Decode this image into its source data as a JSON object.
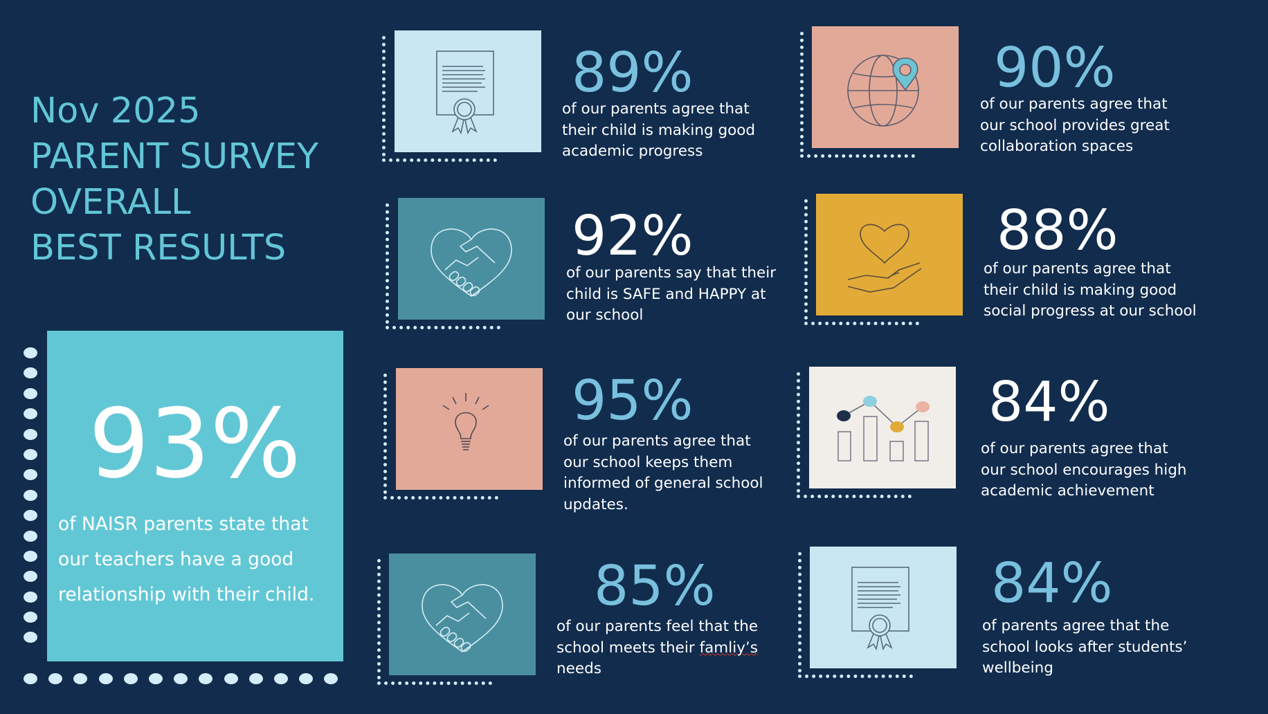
{
  "title": {
    "line1": "Nov 2025",
    "line2": "PARENT SURVEY",
    "line3": "OVERALL",
    "line4": "BEST RESULTS"
  },
  "featured": {
    "percent": "93%",
    "description": "of NAISR parents state that our teachers have a good relationship with their child."
  },
  "colors": {
    "background": "#112c4d",
    "accent": "#63c6d6",
    "tile_light_blue": "#c8e7f1",
    "tile_teal": "#4a8fa0",
    "tile_salmon": "#e3a998",
    "tile_gold": "#e2ab38",
    "tile_cream": "#f1eee9"
  },
  "stats": [
    {
      "percent": "89%",
      "description": "of our parents agree that their child is making good academic progress",
      "icon": "certificate-icon",
      "percent_color": "#79c0de"
    },
    {
      "percent": "90%",
      "description": "of our parents agree that our school provides great collaboration spaces",
      "icon": "globe-pin-icon",
      "percent_color": "#79c0de"
    },
    {
      "percent": "92%",
      "description": "of our parents say that their child is SAFE and HAPPY at our school",
      "icon": "handshake-heart-icon",
      "percent_color": "#ffffff"
    },
    {
      "percent": "88%",
      "description": "of our parents agree that their child is making good social progress at our school",
      "icon": "heart-hand-icon",
      "percent_color": "#ffffff"
    },
    {
      "percent": "95%",
      "description": "of our parents agree that our school keeps them informed of general school updates.",
      "icon": "lightbulb-icon",
      "percent_color": "#79c0de"
    },
    {
      "percent": "84%",
      "description": "of our  parents agree that our school encourages high academic achievement",
      "icon": "bar-chart-icon",
      "percent_color": "#ffffff"
    },
    {
      "percent": "85%",
      "description_pre": "of our parents feel that the school meets their ",
      "description_word": "famliy’s",
      "description_post": " needs",
      "icon": "handshake-heart-icon",
      "percent_color": "#79c0de"
    },
    {
      "percent": "84%",
      "description": "of parents agree that the school looks after students’ wellbeing",
      "icon": "certificate-icon",
      "percent_color": "#79c0de"
    }
  ]
}
